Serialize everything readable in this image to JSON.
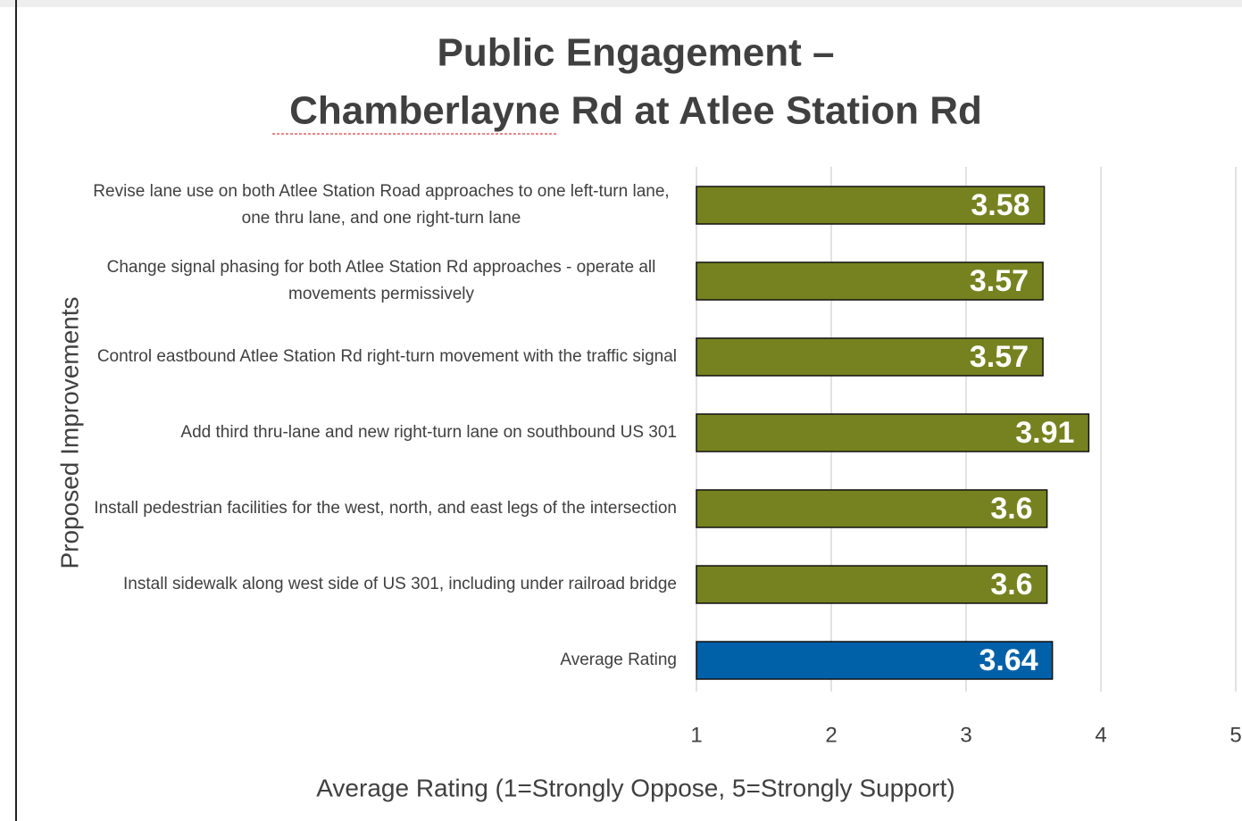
{
  "chart_data": {
    "type": "bar",
    "orientation": "horizontal",
    "title": "Public Engagement –",
    "subtitle": "Chamberlayne Rd at Atlee Station Rd",
    "categories": [
      "Revise lane use on both Atlee Station Road approaches to one left-turn lane, one thru lane, and one right-turn lane",
      "Change signal phasing for both Atlee Station Rd approaches - operate all movements permissively",
      "Control eastbound Atlee Station Rd right-turn movement with the traffic signal",
      "Add third thru-lane and new right-turn lane on southbound US 301",
      "Install pedestrian facilities for the west, north, and east legs of the intersection",
      "Install sidewalk along west side of US 301, including under railroad bridge",
      "Average Rating"
    ],
    "values": [
      3.58,
      3.57,
      3.57,
      3.91,
      3.6,
      3.6,
      3.64
    ],
    "colors": [
      "#76821f",
      "#76821f",
      "#76821f",
      "#76821f",
      "#76821f",
      "#76821f",
      "#0061a8"
    ],
    "xlim": [
      1,
      5
    ],
    "xticks": [
      1,
      2,
      3,
      4,
      5
    ],
    "x_label": "Average Rating (1=Strongly Oppose, 5=Strongly Support)",
    "y_label": "Proposed Improvements",
    "grid": true
  }
}
